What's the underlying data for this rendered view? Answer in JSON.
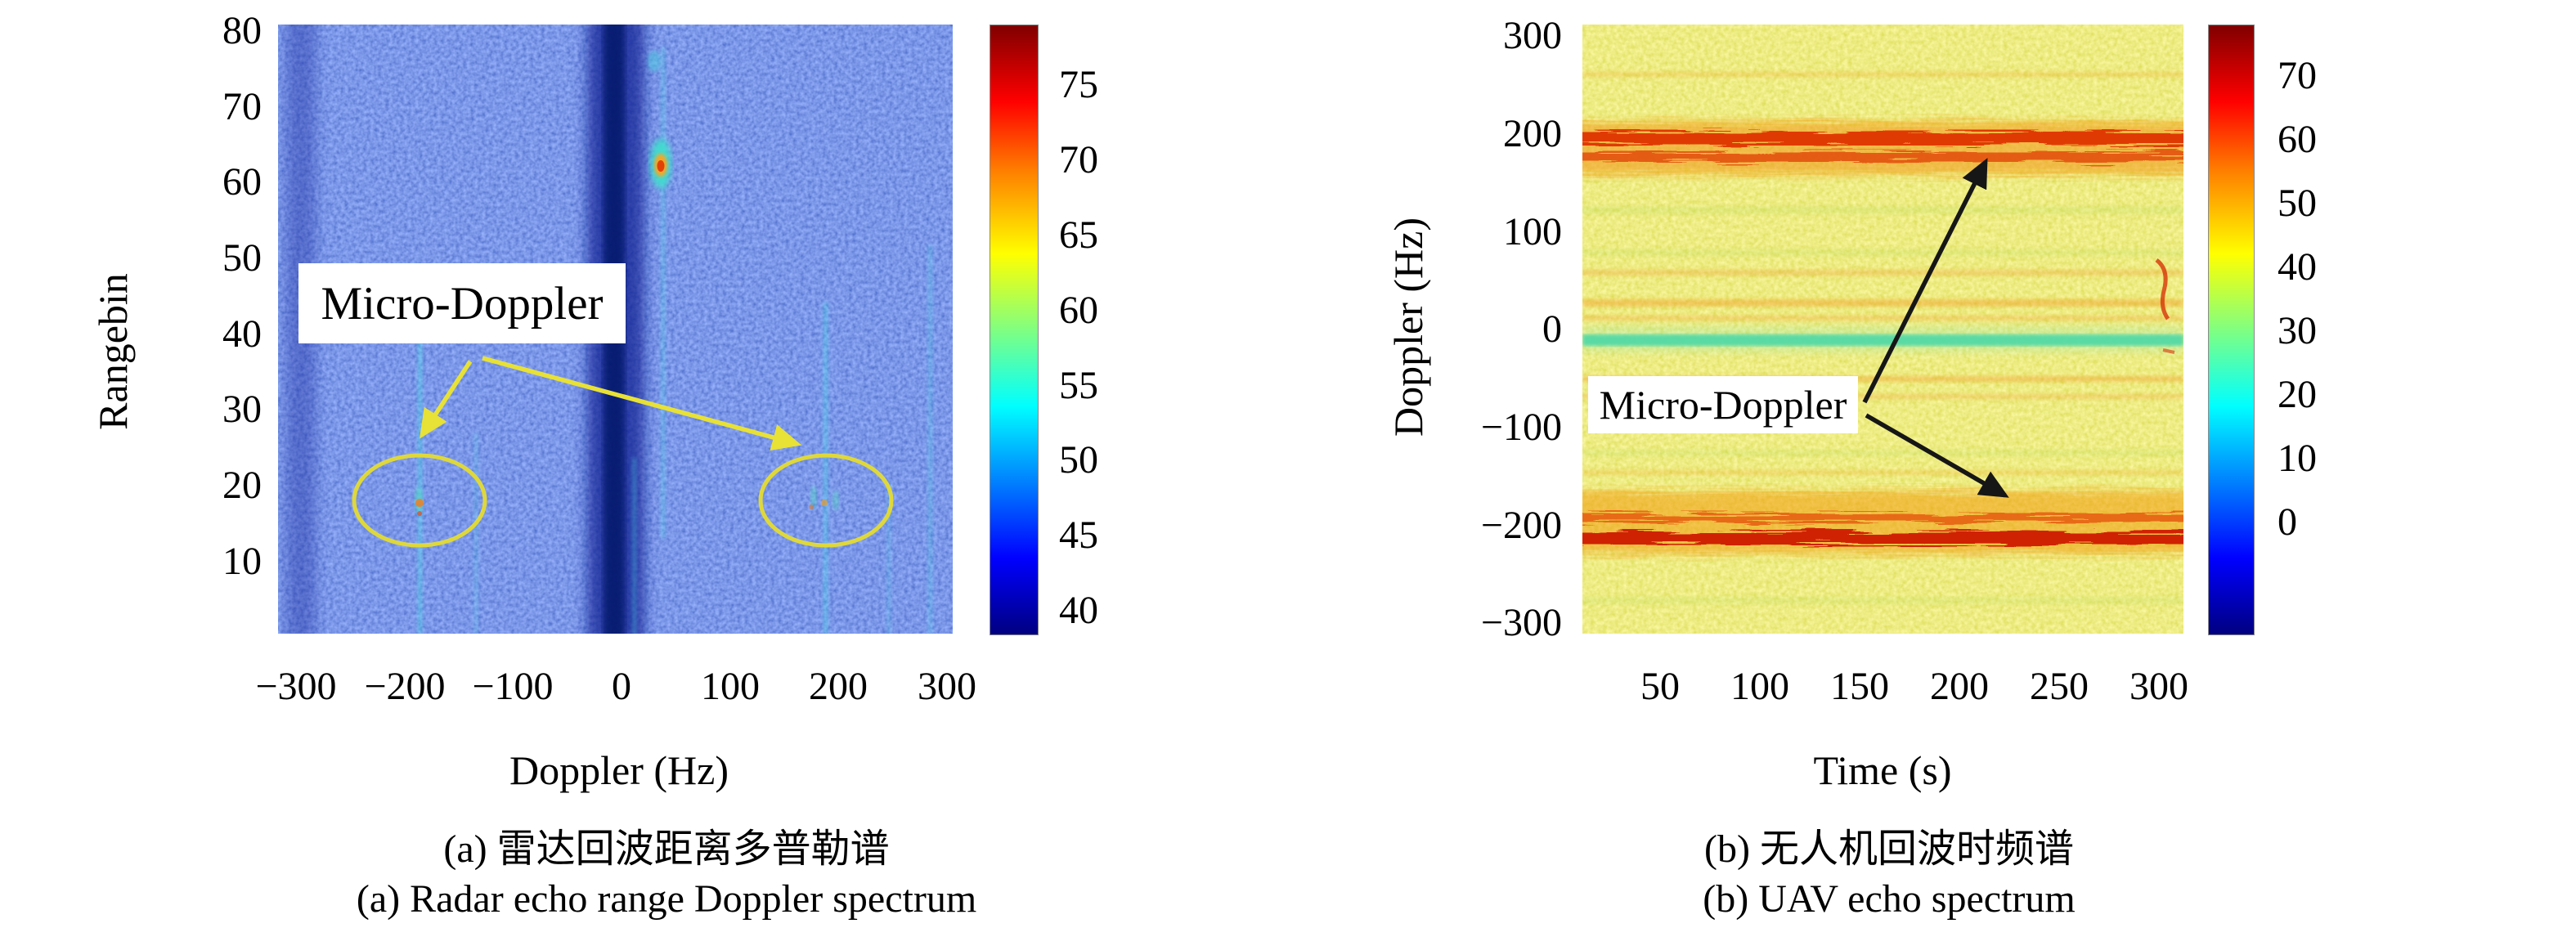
{
  "figure": {
    "panels": [
      {
        "id": "a",
        "ylabel": "Rangebin",
        "xlabel": "Doppler (Hz)",
        "y_ticks": [
          "80",
          "70",
          "60",
          "50",
          "40",
          "30",
          "20",
          "10"
        ],
        "x_ticks": [
          "−300",
          "−200",
          "−100",
          "0",
          "100",
          "200",
          "300"
        ],
        "cb_ticks": [
          "75",
          "70",
          "65",
          "60",
          "55",
          "50",
          "45",
          "40"
        ],
        "annotation": "Micro-Doppler",
        "caption_zh": "(a) 雷达回波距离多普勒谱",
        "caption_en": "(a) Radar echo range Doppler spectrum"
      },
      {
        "id": "b",
        "ylabel": "Doppler (Hz)",
        "xlabel": "Time (s)",
        "y_ticks": [
          "300",
          "200",
          "100",
          "0",
          "−100",
          "−200",
          "−300"
        ],
        "x_ticks": [
          "50",
          "100",
          "150",
          "200",
          "250",
          "300"
        ],
        "cb_ticks": [
          "70",
          "60",
          "50",
          "40",
          "30",
          "20",
          "10",
          "0"
        ],
        "annotation": "Micro-Doppler",
        "caption_zh": "(b) 无人机回波时频谱",
        "caption_en": "(b) UAV echo spectrum"
      }
    ],
    "colors": {
      "colormap": "jet",
      "panel_a_background": "#2a3fd2",
      "panel_b_background": "#d9d93b",
      "annotation_marks_a": "#e8e136",
      "annotation_marks_b": "#161616",
      "annotation_box_bg": "#ffffff"
    }
  },
  "chart_data": [
    {
      "type": "heatmap",
      "title": "(a) Radar echo range Doppler spectrum",
      "title_zh": "(a) 雷达回波距离多普勒谱",
      "xlabel": "Doppler (Hz)",
      "ylabel": "Rangebin",
      "xlim": [
        -310,
        310
      ],
      "ylim": [
        0,
        81
      ],
      "x_ticks": [
        -300,
        -200,
        -100,
        0,
        100,
        200,
        300
      ],
      "y_ticks": [
        10,
        20,
        30,
        40,
        50,
        60,
        70,
        80
      ],
      "grid": false,
      "legend": "colorbar right",
      "colorbar": {
        "tick_values": [
          75,
          70,
          65,
          60,
          55,
          50,
          45,
          40
        ],
        "range_dB": [
          39,
          79
        ],
        "colormap": "jet"
      },
      "background_noise_level_dB": 44,
      "features": [
        {
          "name": "zero-Doppler clutter notch (dark band)",
          "doppler_hz": -10,
          "rangebin": "all",
          "approx_value_dB": 40
        },
        {
          "name": "strong target echo hotspot",
          "doppler_hz": 40,
          "rangebin": 63,
          "approx_value_dB": 72
        },
        {
          "name": "micro-Doppler return (circled)",
          "doppler_hz": -185,
          "rangebin": 20,
          "approx_value_dB": 60
        },
        {
          "name": "micro-Doppler return (circled)",
          "doppler_hz": 185,
          "rangebin": 20,
          "approx_value_dB": 60
        }
      ],
      "annotations": [
        {
          "text": "Micro-Doppler",
          "style": "white label box, black serif text",
          "marker_color": "yellow",
          "ellipses": [
            {
              "center_doppler_hz": -185,
              "center_rangebin": 20
            },
            {
              "center_doppler_hz": 185,
              "center_rangebin": 20
            }
          ],
          "arrows": 2
        }
      ]
    },
    {
      "type": "heatmap",
      "subtype": "spectrogram",
      "title": "(b) UAV echo spectrum",
      "title_zh": "(b) 无人机回波时频谱",
      "xlabel": "Time (s)",
      "ylabel": "Doppler (Hz)",
      "xlim": [
        0,
        310
      ],
      "ylim": [
        -307,
        307
      ],
      "x_ticks": [
        50,
        100,
        150,
        200,
        250,
        300
      ],
      "y_ticks": [
        -300,
        -200,
        -100,
        0,
        100,
        200,
        300
      ],
      "grid": false,
      "legend": "colorbar right",
      "colorbar": {
        "tick_values": [
          70,
          60,
          50,
          40,
          30,
          20,
          10,
          0
        ],
        "range_dB": [
          -17,
          78
        ],
        "colormap": "jet"
      },
      "background_noise_level_dB": 45,
      "features": [
        {
          "name": "UAV body Doppler line (upper, double red track)",
          "doppler_hz": 190,
          "time_s": [
            0,
            310
          ],
          "approx_value_dB": 68
        },
        {
          "name": "UAV body Doppler line (lower, double red track)",
          "doppler_hz": -190,
          "time_s": [
            0,
            310
          ],
          "approx_value_dB": 68
        },
        {
          "name": "zero-Doppler suppressed clutter (cyan line)",
          "doppler_hz": 0,
          "time_s": [
            0,
            310
          ],
          "approx_value_dB": 28
        }
      ],
      "annotations": [
        {
          "text": "Micro-Doppler",
          "style": "white label box, black serif text",
          "marker_color": "black",
          "arrow_targets": [
            {
              "doppler_hz": 190,
              "time_s": 205
            },
            {
              "doppler_hz": -185,
              "time_s": 215
            }
          ],
          "arrows": 2
        }
      ]
    }
  ]
}
